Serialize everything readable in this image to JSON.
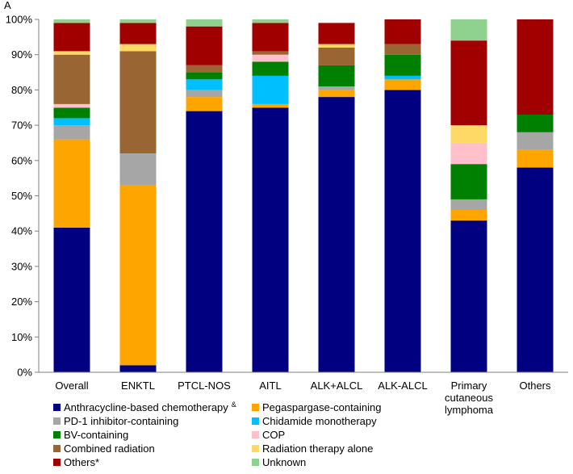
{
  "panel_label": "A",
  "chart_data": {
    "type": "bar",
    "stacked": true,
    "title": "",
    "xlabel": "",
    "ylabel": "",
    "ylim": [
      0,
      100
    ],
    "y_ticks": [
      "0%",
      "10%",
      "20%",
      "30%",
      "40%",
      "50%",
      "60%",
      "70%",
      "80%",
      "90%",
      "100%"
    ],
    "grid": false,
    "legend_position": "bottom",
    "categories": [
      [
        "Overall"
      ],
      [
        "ENKTL"
      ],
      [
        "PTCL-NOS"
      ],
      [
        "AITL"
      ],
      [
        "ALK+ALCL"
      ],
      [
        "ALK-ALCL"
      ],
      [
        "Primary",
        "cutaneous",
        "lymphoma"
      ],
      [
        "Others"
      ]
    ],
    "series": [
      {
        "name": "Anthracycline-based chemotherapy",
        "superscript": "&",
        "color": "#000080",
        "values": [
          41,
          2,
          74,
          75,
          78,
          80,
          43,
          58
        ]
      },
      {
        "name": "Pegaspargase-containing",
        "color": "#FFA500",
        "values": [
          25,
          51,
          4,
          1,
          2,
          3,
          3,
          5
        ]
      },
      {
        "name": "PD-1 inhibitor-containing",
        "color": "#A6A6A6",
        "values": [
          4,
          9,
          2,
          0,
          1,
          0,
          3,
          5
        ]
      },
      {
        "name": "Chidamide monotherapy",
        "color": "#00BFFF",
        "values": [
          2,
          0,
          3,
          8,
          0,
          1,
          0,
          0
        ]
      },
      {
        "name": "BV-containing",
        "color": "#008000",
        "values": [
          3,
          0,
          2,
          4,
          6,
          6,
          10,
          5
        ]
      },
      {
        "name": "COP",
        "color": "#FFC0CB",
        "values": [
          1,
          0,
          0,
          2,
          0,
          0,
          6,
          0
        ]
      },
      {
        "name": "Combined radiation",
        "color": "#996633",
        "values": [
          14,
          29,
          2,
          1,
          5,
          3,
          0,
          0
        ]
      },
      {
        "name": "Radiation therapy alone",
        "color": "#FFD966",
        "values": [
          1,
          2,
          0,
          0,
          1,
          0,
          5,
          0
        ]
      },
      {
        "name": "Others*",
        "color": "#A00000",
        "values": [
          8,
          6,
          11,
          8,
          6,
          7,
          24,
          27
        ]
      },
      {
        "name": "Unknown",
        "color": "#8FD18F",
        "values": [
          1,
          1,
          2,
          1,
          0,
          0,
          6,
          0
        ]
      }
    ]
  }
}
